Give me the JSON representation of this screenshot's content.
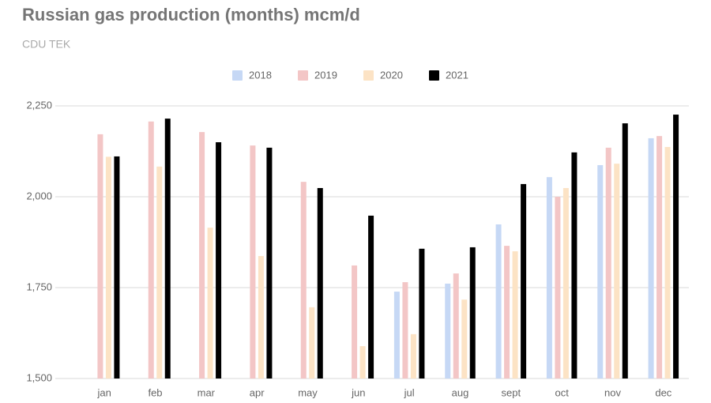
{
  "chart_data": {
    "type": "bar",
    "title": "Russian gas production (months) mcm/d",
    "subtitle": "CDU TEK",
    "categories": [
      "jan",
      "feb",
      "mar",
      "apr",
      "may",
      "jun",
      "jul",
      "aug",
      "sept",
      "oct",
      "nov",
      "dec"
    ],
    "series": [
      {
        "name": "2018",
        "color": "#c6d8f5",
        "values": [
          null,
          null,
          null,
          null,
          null,
          null,
          1739,
          1761,
          1924,
          2054,
          2087,
          2161
        ]
      },
      {
        "name": "2019",
        "color": "#f3c6c6",
        "values": [
          2172,
          2207,
          2178,
          2141,
          2041,
          1811,
          1765,
          1789,
          1865,
          2000,
          2135,
          2167
        ]
      },
      {
        "name": "2020",
        "color": "#fce3c5",
        "values": [
          2110,
          2083,
          1915,
          1837,
          1696,
          1589,
          1622,
          1717,
          1850,
          2024,
          2091,
          2137
        ]
      },
      {
        "name": "2021",
        "color": "#000000",
        "values": [
          2111,
          2215,
          2150,
          2135,
          2024,
          1948,
          1857,
          1861,
          2035,
          2122,
          2202,
          2226
        ]
      }
    ],
    "ylim": [
      1500,
      2250
    ],
    "yticks": [
      {
        "value": 1500,
        "label": "1,500"
      },
      {
        "value": 1750,
        "label": "1,750"
      },
      {
        "value": 2000,
        "label": "2,000"
      },
      {
        "value": 2250,
        "label": "2,250"
      }
    ],
    "grid": true,
    "legend": "top"
  }
}
